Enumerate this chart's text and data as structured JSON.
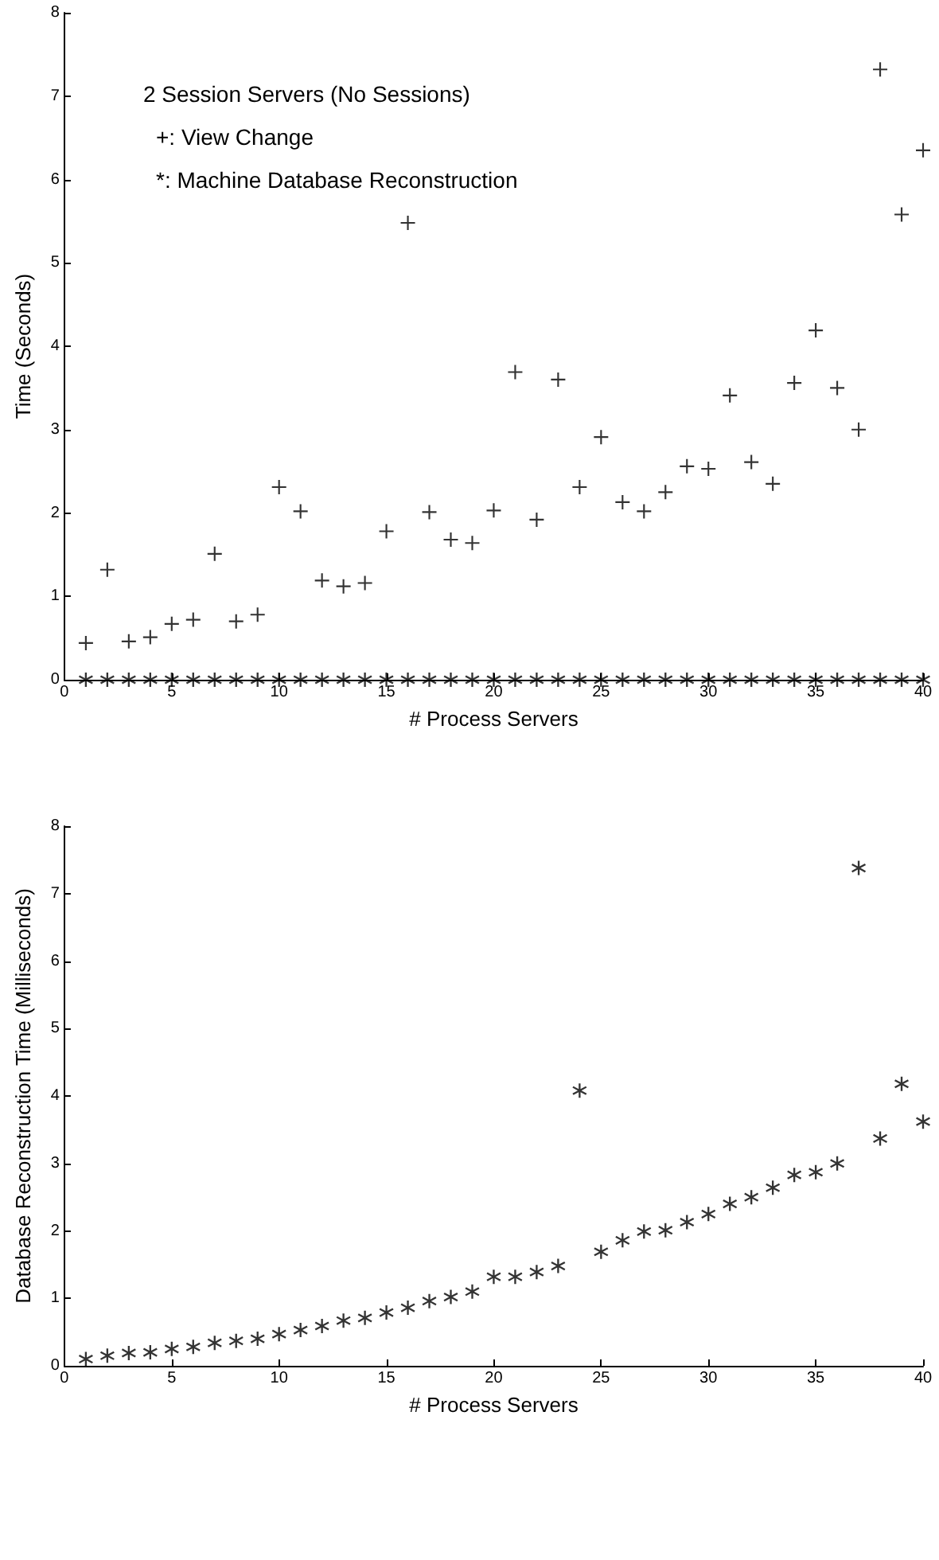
{
  "chart_data": [
    {
      "type": "scatter",
      "xlabel": "# Process Servers",
      "ylabel": "Time (Seconds)",
      "annotations": [
        "2 Session Servers (No Sessions)",
        "+: View Change",
        "*: Machine Database Reconstruction"
      ],
      "x": [
        1,
        2,
        3,
        4,
        5,
        6,
        7,
        8,
        9,
        10,
        11,
        12,
        13,
        14,
        15,
        16,
        17,
        18,
        19,
        20,
        21,
        22,
        23,
        24,
        25,
        26,
        27,
        28,
        29,
        30,
        31,
        32,
        33,
        34,
        35,
        36,
        37,
        38,
        39,
        40
      ],
      "series": [
        {
          "color": "#000000",
          "marker": "cross",
          "values": [
            0.44,
            1.32,
            0.46,
            0.51,
            0.67,
            0.72,
            1.51,
            0.7,
            0.78,
            2.31,
            2.02,
            1.19,
            1.12,
            1.16,
            1.78,
            5.48,
            2.01,
            1.68,
            1.64,
            2.03,
            3.69,
            1.92,
            3.6,
            2.31,
            2.91,
            2.13,
            2.02,
            2.25,
            2.56,
            2.53,
            3.41,
            2.61,
            2.35,
            3.56,
            4.19,
            3.5,
            3.0,
            7.32,
            5.58,
            6.35
          ]
        },
        {
          "color": "#000000",
          "marker": "star",
          "values": [
            0,
            0,
            0,
            0,
            0,
            0,
            0,
            0,
            0,
            0,
            0,
            0,
            0,
            0,
            0,
            0,
            0,
            0,
            0,
            0,
            0,
            0,
            0,
            0,
            0,
            0,
            0,
            0,
            0,
            0,
            0,
            0,
            0,
            0,
            0,
            0,
            0,
            0,
            0,
            0
          ]
        }
      ],
      "xlim": [
        0,
        40
      ],
      "xticks": [
        0,
        5,
        10,
        15,
        20,
        25,
        30,
        35,
        40
      ],
      "ylim": [
        0,
        8
      ],
      "yticks": [
        0,
        1,
        2,
        3,
        4,
        5,
        6,
        7,
        8
      ],
      "grid": false
    },
    {
      "type": "scatter",
      "xlabel": "# Process Servers",
      "ylabel": "Database Reconstruction Time (Milliseconds)",
      "x": [
        1,
        2,
        3,
        4,
        5,
        6,
        7,
        8,
        9,
        10,
        11,
        12,
        13,
        14,
        15,
        16,
        17,
        18,
        19,
        20,
        21,
        22,
        23,
        24,
        25,
        26,
        27,
        28,
        29,
        30,
        31,
        32,
        33,
        34,
        35,
        36,
        37,
        38,
        39,
        40
      ],
      "series": [
        {
          "color": "#000000",
          "marker": "star",
          "values": [
            0.1,
            0.15,
            0.19,
            0.2,
            0.25,
            0.28,
            0.34,
            0.37,
            0.4,
            0.47,
            0.53,
            0.59,
            0.67,
            0.71,
            0.79,
            0.86,
            0.96,
            1.02,
            1.1,
            1.32,
            1.32,
            1.39,
            1.48,
            4.08,
            1.69,
            1.86,
            1.99,
            2.01,
            2.13,
            2.25,
            2.4,
            2.5,
            2.64,
            2.83,
            2.87,
            3.0,
            7.38,
            3.37,
            4.18,
            3.62
          ]
        }
      ],
      "xlim": [
        0,
        40
      ],
      "xticks": [
        0,
        5,
        10,
        15,
        20,
        25,
        30,
        35,
        40
      ],
      "ylim": [
        0,
        8
      ],
      "yticks": [
        0,
        1,
        2,
        3,
        4,
        5,
        6,
        7,
        8
      ],
      "grid": false
    }
  ]
}
